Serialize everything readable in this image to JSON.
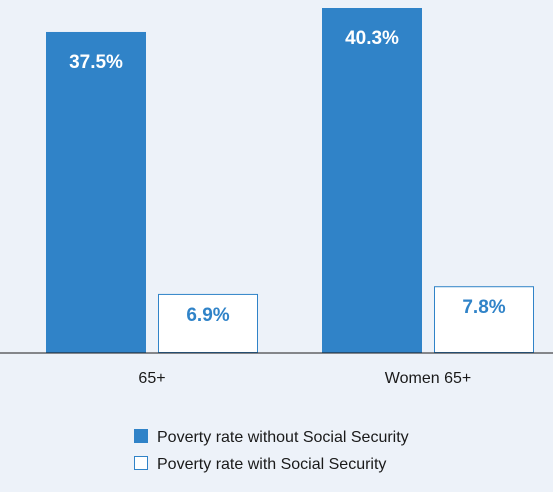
{
  "chart_data": {
    "type": "bar",
    "categories": [
      "65+",
      "Women 65+"
    ],
    "series": [
      {
        "name": "Poverty rate without Social Security",
        "values": [
          37.5,
          40.3
        ],
        "labels": [
          "37.5%",
          "40.3%"
        ],
        "color": "#3083c8",
        "fill": "solid"
      },
      {
        "name": "Poverty rate with Social Security",
        "values": [
          6.9,
          7.8
        ],
        "labels": [
          "6.9%",
          "7.8%"
        ],
        "color": "#3083c8",
        "fill": "outline"
      }
    ],
    "ylim": [
      0,
      40.3
    ],
    "grid": false,
    "legend_position": "bottom-center"
  },
  "colors": {
    "background": "#edf2f9",
    "accent": "#3083c8",
    "axis": "#1a1a1a"
  }
}
